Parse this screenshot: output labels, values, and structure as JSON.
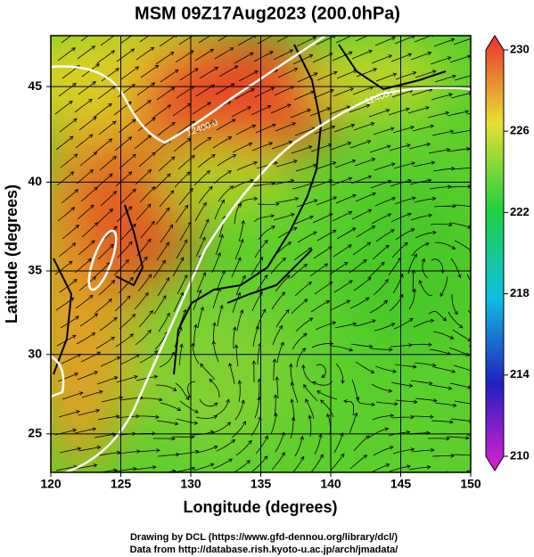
{
  "title": "MSM 09Z17Aug2023 (200.0hPa)",
  "x_axis": {
    "label": "Longitude (degrees)",
    "lim": [
      120,
      150
    ],
    "ticks": [
      120,
      125,
      130,
      135,
      140,
      145,
      150
    ]
  },
  "y_axis": {
    "label": "Latitude  (degrees)",
    "lim": [
      22.5,
      47.5
    ],
    "ticks": [
      25,
      30,
      35,
      40,
      45
    ]
  },
  "colorbar": {
    "lim": [
      210,
      230
    ],
    "ticks": [
      210,
      214,
      218,
      222,
      226,
      230
    ]
  },
  "contour_labels": [
    "12400.0",
    "12400.0"
  ],
  "credits": [
    "Drawing by DCL (https://www.gfd-dennou.org/library/dcl/)",
    "Data from http://database.rish.kyoto-u.ac.jp/arch/jmadata/"
  ]
}
